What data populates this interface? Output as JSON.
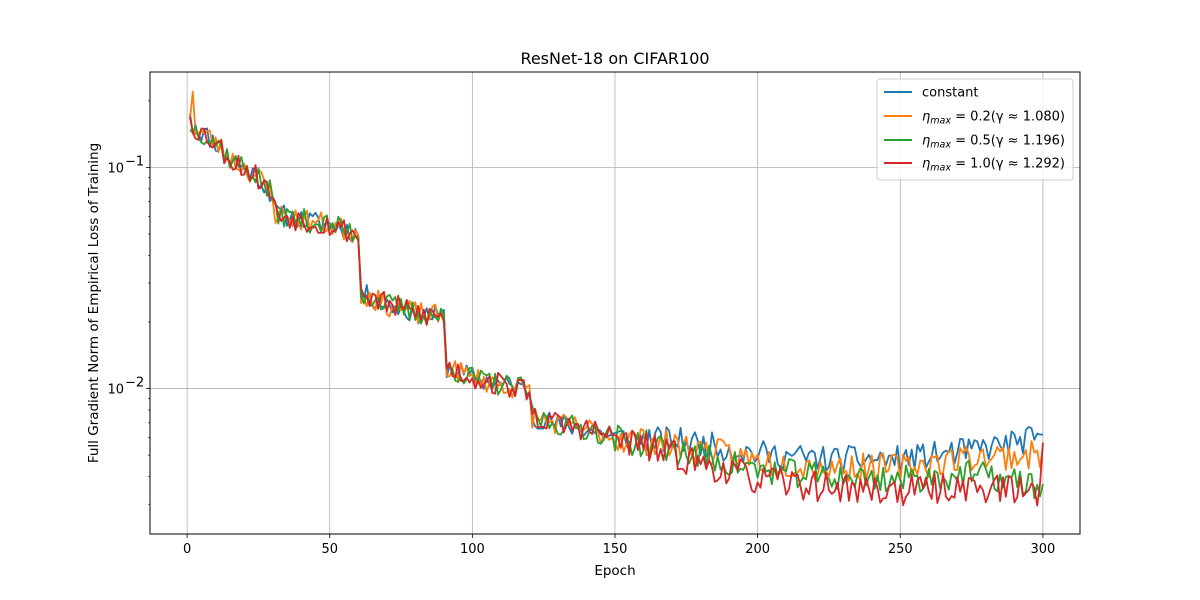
{
  "chart_data": {
    "type": "line",
    "title": "ResNet-18 on CIFAR100",
    "xlabel": "Epoch",
    "ylabel": "Full Gradient Norm of Empirical Loss of Training",
    "xlim": [
      -13,
      313
    ],
    "ylim": [
      0.0022,
      0.27
    ],
    "yscale": "log",
    "grid": true,
    "legend_position": "top-right",
    "xticks": [
      0,
      50,
      100,
      150,
      200,
      250,
      300
    ],
    "xtick_labels": [
      "0",
      "50",
      "100",
      "150",
      "200",
      "250",
      "300"
    ],
    "yticks": [
      0.01,
      0.1
    ],
    "ytick_base": "10",
    "ytick_exponents": [
      "−2",
      "−1"
    ],
    "anchors": [
      [
        1,
        0.155
      ],
      [
        5,
        0.145
      ],
      [
        10,
        0.13
      ],
      [
        15,
        0.11
      ],
      [
        20,
        0.1
      ],
      [
        25,
        0.09
      ],
      [
        30,
        0.075
      ],
      [
        31,
        0.062
      ],
      [
        40,
        0.058
      ],
      [
        50,
        0.055
      ],
      [
        60,
        0.05
      ],
      [
        61,
        0.027
      ],
      [
        70,
        0.024
      ],
      [
        80,
        0.022
      ],
      [
        90,
        0.021
      ],
      [
        91,
        0.0125
      ],
      [
        100,
        0.0112
      ],
      [
        110,
        0.0104
      ],
      [
        120,
        0.0098
      ],
      [
        121,
        0.0075
      ],
      [
        130,
        0.0069
      ],
      [
        140,
        0.0066
      ],
      [
        150,
        0.006
      ],
      [
        175,
        0.0052
      ],
      [
        200,
        0.0045
      ],
      [
        225,
        0.0042
      ],
      [
        250,
        0.004
      ],
      [
        275,
        0.0041
      ],
      [
        300,
        0.004
      ]
    ],
    "series": [
      {
        "name": "constant",
        "color": "#1f77b4",
        "seed": 11,
        "tail": [
          [
            150,
            1.0
          ],
          [
            175,
            1.11
          ],
          [
            200,
            1.13
          ],
          [
            225,
            1.14
          ],
          [
            250,
            1.2
          ],
          [
            275,
            1.28
          ],
          [
            300,
            1.5
          ]
        ],
        "noise": 0.07,
        "special": [
          [
            1,
            0.175
          ],
          [
            300,
            0.0062
          ]
        ]
      },
      {
        "name": "η_max = 0.2 (γ ≈ 1.080)",
        "color": "#ff7f0e",
        "seed": 23,
        "tail": [
          [
            150,
            1.0
          ],
          [
            175,
            1.05
          ],
          [
            200,
            1.05
          ],
          [
            225,
            1.05
          ],
          [
            250,
            1.1
          ],
          [
            275,
            1.2
          ],
          [
            300,
            1.25
          ]
        ],
        "noise": 0.075,
        "special": [
          [
            1,
            0.165
          ],
          [
            2,
            0.22
          ],
          [
            300,
            0.0055
          ]
        ]
      },
      {
        "name": "η_max = 0.5 (γ ≈ 1.196)",
        "color": "#2ca02c",
        "seed": 37,
        "tail": [
          [
            150,
            1.0
          ],
          [
            175,
            0.98
          ],
          [
            200,
            0.95
          ],
          [
            225,
            0.95
          ],
          [
            250,
            0.97
          ],
          [
            275,
            1.0
          ],
          [
            300,
            0.9
          ]
        ],
        "noise": 0.075,
        "special": [
          [
            1,
            0.148
          ],
          [
            300,
            0.0037
          ]
        ]
      },
      {
        "name": "η_max = 1.0 (γ ≈ 1.292)",
        "color": "#d62728",
        "seed": 53,
        "tail": [
          [
            150,
            1.0
          ],
          [
            175,
            0.92
          ],
          [
            200,
            0.86
          ],
          [
            225,
            0.85
          ],
          [
            250,
            0.86
          ],
          [
            275,
            0.88
          ],
          [
            300,
            0.85
          ]
        ],
        "noise": 0.08,
        "special": [
          [
            1,
            0.17
          ],
          [
            300,
            0.0057
          ]
        ]
      }
    ]
  },
  "legend": {
    "items": [
      {
        "label": "constant",
        "symbol": "",
        "subscript": "",
        "rest": ""
      },
      {
        "label": "",
        "symbol": "η",
        "subscript": "max",
        "rest": " = 0.2(γ ≈ 1.080)"
      },
      {
        "label": "",
        "symbol": "η",
        "subscript": "max",
        "rest": " = 0.5(γ ≈ 1.196)"
      },
      {
        "label": "",
        "symbol": "η",
        "subscript": "max",
        "rest": " = 1.0(γ ≈ 1.292)"
      }
    ],
    "colors": [
      "#1f77b4",
      "#ff7f0e",
      "#2ca02c",
      "#d62728"
    ]
  }
}
